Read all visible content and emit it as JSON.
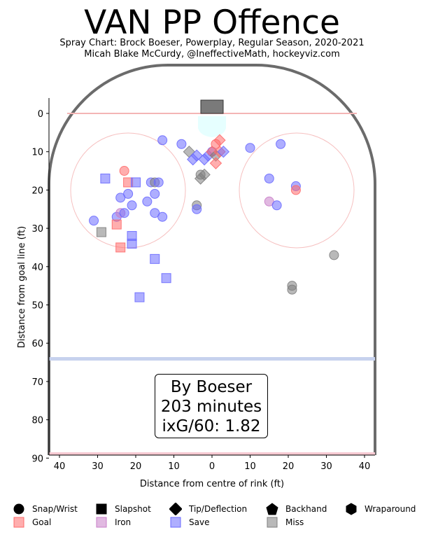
{
  "title": "VAN PP Offence",
  "subtitle": {
    "line1": "Spray Chart: Brock Boeser, Powerplay, Regular Season, 2020-2021",
    "line2": "Micah Blake McCurdy, @IneffectiveMath, hockeyviz.com"
  },
  "stats_box": {
    "line1": "By Boeser",
    "line2": "203 minutes",
    "line3": "ixG/60: 1.82"
  },
  "legend": {
    "shapes": [
      {
        "label": "Snap/Wrist",
        "icon": "circle"
      },
      {
        "label": "Slapshot",
        "icon": "square"
      },
      {
        "label": "Tip/Deflection",
        "icon": "diamond"
      },
      {
        "label": "Backhand",
        "icon": "pentagon"
      },
      {
        "label": "Wraparound",
        "icon": "hexagon"
      }
    ],
    "outcomes": [
      {
        "label": "Goal",
        "color": "#ff6b6b"
      },
      {
        "label": "Iron",
        "color": "#c97fc9"
      },
      {
        "label": "Save",
        "color": "#6b6bff"
      },
      {
        "label": "Miss",
        "color": "#7f7f7f"
      }
    ]
  },
  "chart_data": {
    "type": "scatter",
    "title": "VAN PP Offence",
    "xlabel": "Distance from centre of rink (ft)",
    "ylabel": "Distance from goal line (ft)",
    "xlim": [
      -43,
      43
    ],
    "ylim": [
      90,
      -8
    ],
    "x_ticks": [
      {
        "value": -40,
        "label": "40"
      },
      {
        "value": -30,
        "label": "30"
      },
      {
        "value": -20,
        "label": "20"
      },
      {
        "value": -10,
        "label": "10"
      },
      {
        "value": 0,
        "label": "0"
      },
      {
        "value": 10,
        "label": "10"
      },
      {
        "value": 20,
        "label": "20"
      },
      {
        "value": 30,
        "label": "30"
      },
      {
        "value": 40,
        "label": "40"
      }
    ],
    "y_ticks": [
      0,
      10,
      20,
      30,
      40,
      50,
      60,
      70,
      80,
      90
    ],
    "grid": false,
    "outcome_colors": {
      "goal": "#ff6b6b",
      "iron": "#c97fc9",
      "save": "#6b6bff",
      "miss": "#7f7f7f"
    },
    "points": [
      {
        "x": -31,
        "y": 28,
        "shape": "circle",
        "outcome": "save"
      },
      {
        "x": -28,
        "y": 17,
        "shape": "square",
        "outcome": "save"
      },
      {
        "x": -29,
        "y": 31,
        "shape": "square",
        "outcome": "miss"
      },
      {
        "x": -25,
        "y": 27,
        "shape": "circle",
        "outcome": "save"
      },
      {
        "x": -25,
        "y": 29,
        "shape": "square",
        "outcome": "goal"
      },
      {
        "x": -24,
        "y": 22,
        "shape": "circle",
        "outcome": "save"
      },
      {
        "x": -24,
        "y": 26,
        "shape": "circle",
        "outcome": "iron"
      },
      {
        "x": -23,
        "y": 26,
        "shape": "circle",
        "outcome": "save"
      },
      {
        "x": -23,
        "y": 15,
        "shape": "circle",
        "outcome": "goal"
      },
      {
        "x": -22,
        "y": 18,
        "shape": "square",
        "outcome": "goal"
      },
      {
        "x": -22,
        "y": 21,
        "shape": "circle",
        "outcome": "save"
      },
      {
        "x": -24,
        "y": 35,
        "shape": "square",
        "outcome": "goal"
      },
      {
        "x": -21,
        "y": 24,
        "shape": "circle",
        "outcome": "save"
      },
      {
        "x": -21,
        "y": 32,
        "shape": "square",
        "outcome": "save"
      },
      {
        "x": -21,
        "y": 34,
        "shape": "square",
        "outcome": "save"
      },
      {
        "x": -20,
        "y": 18,
        "shape": "square",
        "outcome": "save"
      },
      {
        "x": -19,
        "y": 48,
        "shape": "square",
        "outcome": "save"
      },
      {
        "x": -17,
        "y": 23,
        "shape": "circle",
        "outcome": "save"
      },
      {
        "x": -16,
        "y": 18,
        "shape": "circle",
        "outcome": "save"
      },
      {
        "x": -15,
        "y": 18,
        "shape": "circle",
        "outcome": "miss"
      },
      {
        "x": -14,
        "y": 18,
        "shape": "circle",
        "outcome": "save"
      },
      {
        "x": -15,
        "y": 21,
        "shape": "circle",
        "outcome": "save"
      },
      {
        "x": -15,
        "y": 26,
        "shape": "circle",
        "outcome": "save"
      },
      {
        "x": -13,
        "y": 27,
        "shape": "circle",
        "outcome": "save"
      },
      {
        "x": -15,
        "y": 38,
        "shape": "square",
        "outcome": "save"
      },
      {
        "x": -12,
        "y": 43,
        "shape": "square",
        "outcome": "save"
      },
      {
        "x": -13,
        "y": 7,
        "shape": "circle",
        "outcome": "save"
      },
      {
        "x": -8,
        "y": 8,
        "shape": "circle",
        "outcome": "save"
      },
      {
        "x": -6,
        "y": 10,
        "shape": "diamond",
        "outcome": "miss"
      },
      {
        "x": -5,
        "y": 12,
        "shape": "diamond",
        "outcome": "save"
      },
      {
        "x": -4,
        "y": 11,
        "shape": "diamond",
        "outcome": "save"
      },
      {
        "x": -3,
        "y": 16,
        "shape": "circle",
        "outcome": "miss"
      },
      {
        "x": -3,
        "y": 17,
        "shape": "diamond",
        "outcome": "miss"
      },
      {
        "x": -2,
        "y": 16,
        "shape": "diamond",
        "outcome": "miss"
      },
      {
        "x": -2,
        "y": 12,
        "shape": "diamond",
        "outcome": "save"
      },
      {
        "x": -1,
        "y": 11,
        "shape": "diamond",
        "outcome": "save"
      },
      {
        "x": 0,
        "y": 10,
        "shape": "circle",
        "outcome": "save"
      },
      {
        "x": 0,
        "y": 10,
        "shape": "diamond",
        "outcome": "goal"
      },
      {
        "x": 1,
        "y": 8,
        "shape": "circle",
        "outcome": "goal"
      },
      {
        "x": 1,
        "y": 11,
        "shape": "diamond",
        "outcome": "miss"
      },
      {
        "x": 1,
        "y": 13,
        "shape": "diamond",
        "outcome": "goal"
      },
      {
        "x": 2,
        "y": 7,
        "shape": "diamond",
        "outcome": "goal"
      },
      {
        "x": 2,
        "y": 10,
        "shape": "diamond",
        "outcome": "goal"
      },
      {
        "x": 3,
        "y": 10,
        "shape": "diamond",
        "outcome": "save"
      },
      {
        "x": -4,
        "y": 24,
        "shape": "circle",
        "outcome": "miss"
      },
      {
        "x": -4,
        "y": 25,
        "shape": "circle",
        "outcome": "save"
      },
      {
        "x": 10,
        "y": 9,
        "shape": "circle",
        "outcome": "save"
      },
      {
        "x": 15,
        "y": 17,
        "shape": "circle",
        "outcome": "save"
      },
      {
        "x": 15,
        "y": 23,
        "shape": "circle",
        "outcome": "iron"
      },
      {
        "x": 17,
        "y": 24,
        "shape": "circle",
        "outcome": "save"
      },
      {
        "x": 18,
        "y": 8,
        "shape": "circle",
        "outcome": "save"
      },
      {
        "x": 22,
        "y": 19,
        "shape": "circle",
        "outcome": "save"
      },
      {
        "x": 22,
        "y": 20,
        "shape": "circle",
        "outcome": "goal"
      },
      {
        "x": 21,
        "y": 45,
        "shape": "circle",
        "outcome": "miss"
      },
      {
        "x": 21,
        "y": 46,
        "shape": "circle",
        "outcome": "miss"
      },
      {
        "x": 32,
        "y": 37,
        "shape": "circle",
        "outcome": "miss"
      }
    ]
  }
}
